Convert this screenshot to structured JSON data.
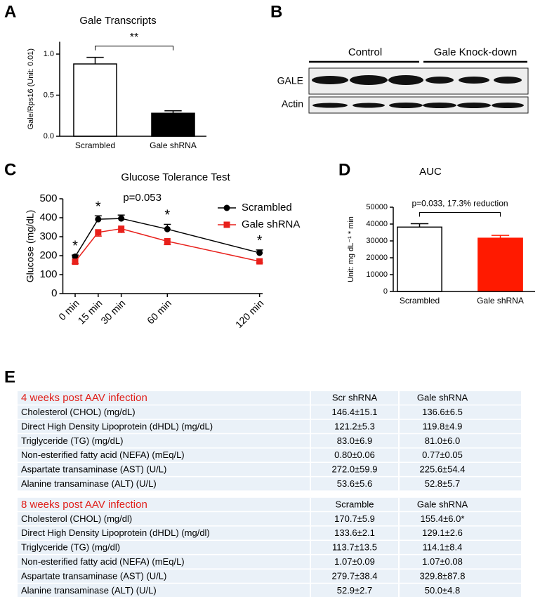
{
  "panels": [
    "A",
    "B",
    "C",
    "D",
    "E"
  ],
  "chart_data": [
    {
      "type": "bar",
      "title": "Gale Transcripts",
      "y_label": "Gale/Rps16 (Unit: 0.01)",
      "categories": [
        "Scrambled",
        "Gale shRNA"
      ],
      "values": [
        0.88,
        0.28
      ],
      "errors": [
        0.08,
        0.03
      ],
      "colors": [
        "#ffffff",
        "#000000"
      ],
      "ylim": [
        0,
        1.15
      ],
      "yticks": [
        {
          "value": 0,
          "label": "0.0"
        },
        {
          "value": 0.5,
          "label": "0.5"
        },
        {
          "value": 1,
          "label": "1.0"
        }
      ],
      "annotation": "**"
    },
    {
      "type": "line",
      "title": "Glucose Tolerance Test",
      "y_label": "Glucose (mg/dL)",
      "x": [
        0,
        15,
        30,
        60,
        120
      ],
      "xlim": [
        -8,
        122
      ],
      "xticks": [
        {
          "value": 0,
          "label": "0 min"
        },
        {
          "value": 15,
          "label": "15 min"
        },
        {
          "value": 30,
          "label": "30 min"
        },
        {
          "value": 60,
          "label": "60 min"
        },
        {
          "value": 120,
          "label": "120 min"
        }
      ],
      "ylim": [
        0,
        500
      ],
      "yticks": [
        0,
        100,
        200,
        300,
        400,
        500
      ],
      "series": [
        {
          "name": "Scrambled",
          "color": "#000000",
          "marker": "circle",
          "error_direction": "up",
          "values": [
            195,
            392,
            396,
            340,
            215
          ],
          "errors": [
            8,
            18,
            18,
            25,
            15
          ]
        },
        {
          "name": "Gale shRNA",
          "color": "#e8201b",
          "marker": "square",
          "error_direction": "down",
          "values": [
            168,
            323,
            342,
            276,
            170
          ],
          "errors": [
            10,
            20,
            20,
            18,
            8
          ]
        }
      ],
      "point_labels": [
        "*",
        "*",
        "p=0.053",
        "*",
        "*"
      ]
    },
    {
      "type": "bar",
      "title": "AUC",
      "y_label": "Unit: mg dL⁻¹ * min",
      "categories": [
        "Scrambled",
        "Gale shRNA"
      ],
      "values": [
        38200,
        31600
      ],
      "errors": [
        2000,
        1700
      ],
      "colors": [
        "#ffffff",
        "#ff1a00"
      ],
      "ylim": [
        0,
        50000
      ],
      "yticks": [
        0,
        10000,
        20000,
        30000,
        40000,
        50000
      ],
      "annotation": "p=0.033, 17.3% reduction"
    }
  ],
  "blot": {
    "groups": [
      "Control",
      "Gale Knock-down"
    ],
    "rows": [
      "GALE",
      "Actin"
    ]
  },
  "table": {
    "sections": [
      {
        "header": [
          "4 weeks post AAV infection",
          "Scr shRNA",
          "Gale shRNA"
        ],
        "rows": [
          [
            "Cholesterol (CHOL) (mg/dL)",
            "146.4±15.1",
            "136.6±6.5"
          ],
          [
            "Direct High Density Lipoprotein (dHDL) (mg/dL)",
            "121.2±5.3",
            "119.8±4.9"
          ],
          [
            "Triglyceride (TG) (mg/dL)",
            "83.0±6.9",
            "81.0±6.0"
          ],
          [
            "Non-esterified fatty acid (NEFA) (mEq/L)",
            "0.80±0.06",
            "0.77±0.05"
          ],
          [
            "Aspartate transaminase (AST) (U/L)",
            "272.0±59.9",
            "225.6±54.4"
          ],
          [
            "Alanine transaminase (ALT) (U/L)",
            "53.6±5.6",
            "52.8±5.7"
          ]
        ]
      },
      {
        "header": [
          "8 weeks post AAV infection",
          "Scramble",
          "Gale shRNA"
        ],
        "rows": [
          [
            "Cholesterol (CHOL) (mg/dl)",
            "170.7±5.9",
            "155.4±6.0*"
          ],
          [
            "Direct High Density Lipoprotein (dHDL) (mg/dl)",
            "133.6±2.1",
            "129.1±2.6"
          ],
          [
            "Triglyceride (TG) (mg/dl)",
            "113.7±13.5",
            "114.1±8.4"
          ],
          [
            "Non-esterified fatty acid (NEFA) (mEq/L)",
            "1.07±0.09",
            "1.07±0.08"
          ],
          [
            "Aspartate transaminase (AST) (U/L)",
            "279.7±38.4",
            "329.8±87.8"
          ],
          [
            "Alanine transaminase (ALT) (U/L)",
            "52.9±2.7",
            "50.0±4.8"
          ]
        ]
      }
    ]
  }
}
